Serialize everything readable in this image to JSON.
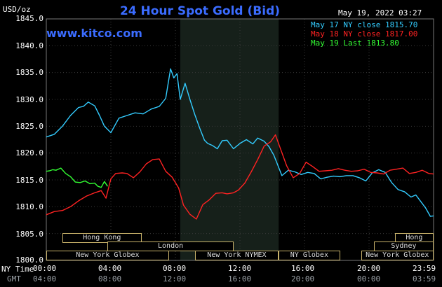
{
  "header": {
    "title": "24 Hour Spot Gold (Bid)",
    "unit": "USD/oz",
    "timestamp": "May 19, 2022 03:27",
    "site": "www.kitco.com"
  },
  "legend": [
    {
      "label": "May 17 NY close 1815.70",
      "color": "#33ccff"
    },
    {
      "label": "May 18 NY close 1817.00",
      "color": "#ff2222"
    },
    {
      "label": "May 19 Last 1813.80",
      "color": "#33ff33"
    }
  ],
  "axis": {
    "y_ticks": [
      "1845.0",
      "1840.0",
      "1835.0",
      "1830.0",
      "1825.0",
      "1820.0",
      "1815.0",
      "1810.0",
      "1805.0",
      "1800.0"
    ],
    "x_row1_label": "NY Time",
    "x_row2_label": "GMT",
    "x_ticks_ny": [
      "00:00",
      "04:00",
      "08:00",
      "12:00",
      "16:00",
      "20:00",
      "23:59"
    ],
    "x_ticks_gmt": [
      "04:00",
      "08:00",
      "12:00",
      "16:00",
      "20:00",
      "00:00",
      "03:59"
    ]
  },
  "sessions": [
    {
      "label": "Hong Kong",
      "hour_start": 1.0,
      "hour_end": 5.9,
      "row": 0
    },
    {
      "label": "London",
      "hour_start": 3.8,
      "hour_end": 11.6,
      "row": 1
    },
    {
      "label": "New York Globex",
      "hour_start": 0.0,
      "hour_end": 7.6,
      "row": 2
    },
    {
      "label": "New York NYMEX",
      "hour_start": 9.2,
      "hour_end": 14.4,
      "row": 2
    },
    {
      "label": "NY Globex",
      "hour_start": 14.4,
      "hour_end": 18.2,
      "row": 2
    },
    {
      "label": "Hong Kong",
      "hour_start": 21.6,
      "hour_end": 24.0,
      "row": 0
    },
    {
      "label": "Sydney",
      "hour_start": 20.3,
      "hour_end": 24.0,
      "row": 1
    },
    {
      "label": "New York Globex",
      "hour_start": 19.5,
      "hour_end": 24.0,
      "row": 2
    }
  ],
  "chart_data": {
    "type": "line",
    "title": "24 Hour Spot Gold (Bid)",
    "ylabel": "USD/oz",
    "xlabel": "NY Time",
    "ylim": [
      1800,
      1845
    ],
    "xlim": [
      0,
      24
    ],
    "grid": true,
    "legend_position": "top-right",
    "shaded_interval_hours": [
      8.3,
      14.4
    ],
    "series": [
      {
        "name": "May 17 NY close 1815.70",
        "color": "#33ccff",
        "x": [
          0,
          0.5,
          1,
          1.5,
          2,
          2.3,
          2.6,
          3,
          3.3,
          3.6,
          4,
          4.5,
          5,
          5.5,
          6,
          6.5,
          7,
          7.4,
          7.7,
          7.9,
          8.1,
          8.3,
          8.6,
          8.9,
          9.2,
          9.5,
          9.8,
          10,
          10.3,
          10.6,
          10.9,
          11.2,
          11.6,
          12,
          12.4,
          12.8,
          13.1,
          13.5,
          13.8,
          14.1,
          14.3,
          14.6,
          15,
          15.4,
          15.8,
          16.2,
          16.6,
          17,
          17.4,
          17.8,
          18.2,
          18.6,
          19,
          19.4,
          19.8,
          20.2,
          20.6,
          21,
          21.4,
          21.8,
          22.2,
          22.6,
          22.9,
          23.2,
          23.5,
          23.8,
          24
        ],
        "y": [
          1823,
          1823.5,
          1825,
          1827,
          1828.5,
          1828.7,
          1829.5,
          1828.8,
          1827,
          1825,
          1823.8,
          1826.5,
          1827,
          1827.5,
          1827.3,
          1828.2,
          1828.7,
          1830.2,
          1835.7,
          1834,
          1834.8,
          1830,
          1833,
          1830,
          1827.2,
          1824.7,
          1822.4,
          1821.8,
          1821.4,
          1820.8,
          1822.3,
          1822.4,
          1820.8,
          1821.8,
          1822.5,
          1821.7,
          1822.8,
          1822.2,
          1821.2,
          1819.6,
          1818.1,
          1815.8,
          1816.8,
          1816.5,
          1816,
          1816.4,
          1816.2,
          1815.2,
          1815.5,
          1815.7,
          1815.6,
          1815.8,
          1815.8,
          1815.4,
          1814.8,
          1816.3,
          1816.9,
          1816.4,
          1814.5,
          1813.2,
          1812.8,
          1811.8,
          1812.2,
          1811,
          1809.8,
          1808.2,
          1808.3
        ]
      },
      {
        "name": "May 18 NY close 1817.00",
        "color": "#ff2222",
        "x": [
          0,
          0.5,
          1,
          1.5,
          2,
          2.5,
          3,
          3.4,
          3.7,
          4,
          4.3,
          4.7,
          5,
          5.4,
          5.8,
          6.2,
          6.6,
          7,
          7.4,
          7.8,
          8.2,
          8.5,
          8.9,
          9.3,
          9.7,
          10.1,
          10.5,
          10.9,
          11.2,
          11.6,
          11.9,
          12.3,
          12.7,
          13.1,
          13.5,
          13.9,
          14.2,
          14.5,
          14.9,
          15.3,
          15.7,
          16.1,
          16.5,
          16.9,
          17.3,
          17.7,
          18.1,
          18.5,
          18.9,
          19.3,
          19.7,
          20.1,
          20.5,
          20.9,
          21.3,
          21.7,
          22.1,
          22.5,
          22.9,
          23.3,
          23.7,
          24
        ],
        "y": [
          1808.5,
          1809.1,
          1809.3,
          1810,
          1811.1,
          1812,
          1812.6,
          1813,
          1811.6,
          1815.2,
          1816.2,
          1816.3,
          1816.2,
          1815.4,
          1816.5,
          1818,
          1818.8,
          1818.9,
          1816.6,
          1815.5,
          1813.5,
          1810.3,
          1808.6,
          1807.7,
          1810.4,
          1811.3,
          1812.5,
          1812.6,
          1812.4,
          1812.6,
          1813.1,
          1814.4,
          1816.5,
          1818.8,
          1821.3,
          1822.1,
          1823.4,
          1820.9,
          1817.6,
          1815.4,
          1816.2,
          1818.3,
          1817.5,
          1816.6,
          1816.7,
          1816.8,
          1817.1,
          1816.8,
          1816.6,
          1816.7,
          1817,
          1816.4,
          1816.3,
          1816.1,
          1816.8,
          1817,
          1817.2,
          1816.2,
          1816.4,
          1816.8,
          1816.2,
          1816.1
        ]
      },
      {
        "name": "May 19 Last 1813.80",
        "color": "#33ff33",
        "x": [
          0,
          0.2,
          0.4,
          0.6,
          0.9,
          1.2,
          1.5,
          1.8,
          2.1,
          2.4,
          2.7,
          3,
          3.2,
          3.4,
          3.6,
          3.8
        ],
        "y": [
          1816.6,
          1816.7,
          1816.9,
          1816.8,
          1817.2,
          1816.2,
          1815.6,
          1814.6,
          1814.5,
          1814.8,
          1814.3,
          1814.4,
          1813.8,
          1813.6,
          1814.7,
          1813.8
        ]
      }
    ]
  }
}
